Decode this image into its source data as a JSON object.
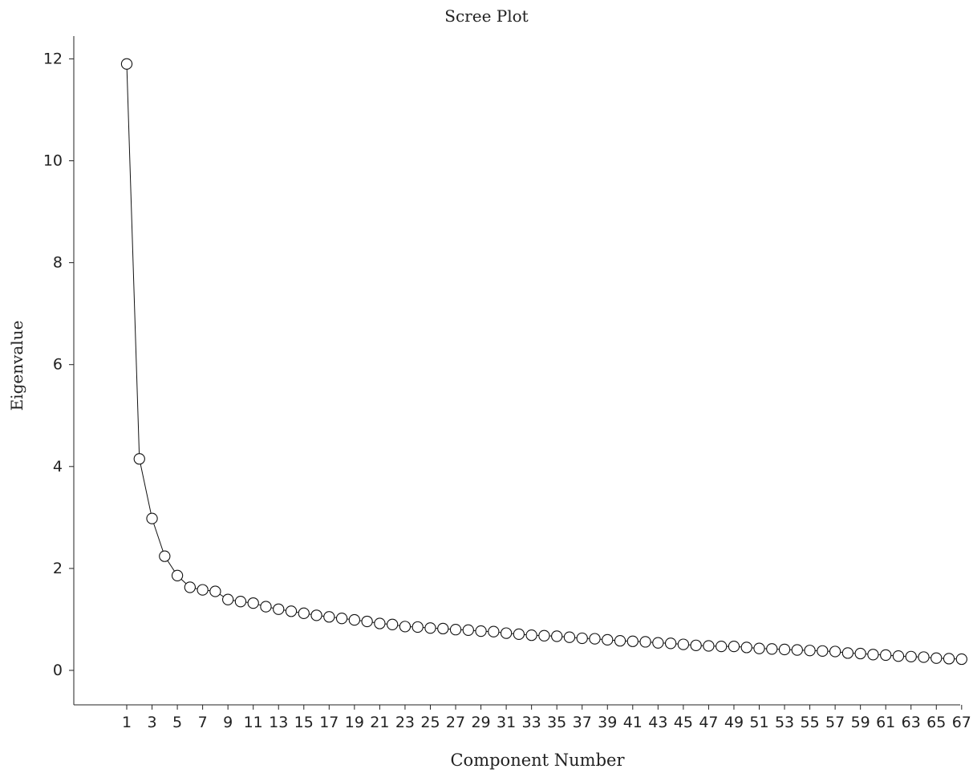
{
  "chart_data": {
    "type": "line",
    "title": "Scree Plot",
    "xlabel": "Component Number",
    "ylabel": "Eigenvalue",
    "ylim": [
      -0.6,
      12.1
    ],
    "yticks": [
      "0",
      "2",
      "4",
      "6",
      "8",
      "10",
      "12"
    ],
    "xticks": [
      "1",
      "3",
      "5",
      "7",
      "9",
      "11",
      "13",
      "15",
      "17",
      "19",
      "21",
      "23",
      "25",
      "27",
      "29",
      "31",
      "33",
      "35",
      "37",
      "39",
      "41",
      "43",
      "45",
      "47",
      "49",
      "51",
      "53",
      "55",
      "57",
      "59",
      "61",
      "63",
      "65",
      "67"
    ],
    "x": [
      1,
      2,
      3,
      4,
      5,
      6,
      7,
      8,
      9,
      10,
      11,
      12,
      13,
      14,
      15,
      16,
      17,
      18,
      19,
      20,
      21,
      22,
      23,
      24,
      25,
      26,
      27,
      28,
      29,
      30,
      31,
      32,
      33,
      34,
      35,
      36,
      37,
      38,
      39,
      40,
      41,
      42,
      43,
      44,
      45,
      46,
      47,
      48,
      49,
      50,
      51,
      52,
      53,
      54,
      55,
      56,
      57,
      58,
      59,
      60,
      61,
      62,
      63,
      64,
      65,
      66,
      67
    ],
    "values": [
      11.9,
      4.15,
      2.98,
      2.24,
      1.86,
      1.63,
      1.58,
      1.55,
      1.39,
      1.35,
      1.32,
      1.25,
      1.2,
      1.16,
      1.12,
      1.08,
      1.05,
      1.02,
      0.99,
      0.96,
      0.92,
      0.9,
      0.86,
      0.85,
      0.83,
      0.82,
      0.8,
      0.79,
      0.77,
      0.76,
      0.73,
      0.71,
      0.69,
      0.68,
      0.67,
      0.65,
      0.63,
      0.62,
      0.6,
      0.58,
      0.57,
      0.56,
      0.54,
      0.53,
      0.51,
      0.49,
      0.48,
      0.47,
      0.47,
      0.45,
      0.43,
      0.42,
      0.41,
      0.4,
      0.39,
      0.38,
      0.37,
      0.34,
      0.33,
      0.31,
      0.3,
      0.28,
      0.27,
      0.26,
      0.24,
      0.23,
      0.22
    ],
    "marker": "open-circle",
    "line_color": "#111111",
    "grid": false
  }
}
